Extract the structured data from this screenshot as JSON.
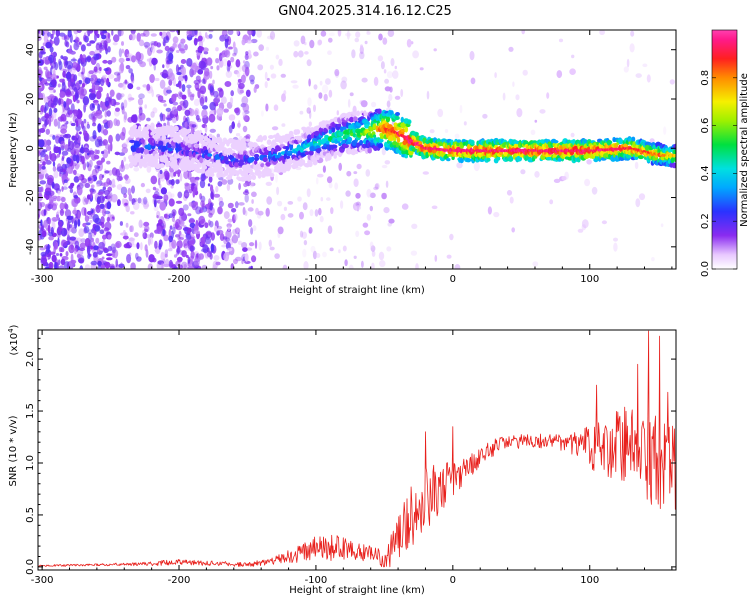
{
  "figure_title": "GN04.2025.314.16.12.C25",
  "chart_data": [
    {
      "type": "heatmap",
      "name": "spectrogram",
      "xlabel": "Height of straight line (km)",
      "ylabel": "Frequency (Hz)",
      "xlim": [
        -303,
        163
      ],
      "ylim": [
        -49,
        48
      ],
      "xticks": [
        -300,
        -200,
        -100,
        0,
        100
      ],
      "yticks": [
        -40,
        -20,
        0,
        20,
        40
      ],
      "colorbar": {
        "label": "Normalized spectral amplitude",
        "range": [
          0.0,
          1.0
        ],
        "ticks": [
          0.0,
          0.2,
          0.4,
          0.6,
          0.8
        ],
        "tick_labels": [
          "0.0",
          "0.2",
          "0.4",
          "0.6",
          "0.8"
        ]
      },
      "ridge": {
        "description": "dominant frequency track (Hz) vs height (km)",
        "x": [
          -235,
          -200,
          -160,
          -130,
          -110,
          -90,
          -75,
          -60,
          -50,
          -40,
          -30,
          -20,
          0,
          50,
          100,
          130,
          145,
          155,
          160
        ],
        "freq": [
          1,
          0,
          -5,
          -3,
          0,
          4,
          6,
          7,
          8,
          6,
          3,
          0,
          -1,
          -1,
          -1,
          0,
          -2,
          -3,
          -3
        ],
        "amplitude": [
          0.3,
          0.28,
          0.25,
          0.32,
          0.4,
          0.5,
          0.55,
          0.65,
          0.85,
          0.9,
          0.95,
          0.95,
          0.95,
          0.95,
          0.95,
          0.9,
          0.85,
          0.8,
          0.75
        ]
      }
    },
    {
      "type": "line",
      "name": "snr",
      "xlabel": "Height of straight line (km)",
      "ylabel": "SNR (10 * v/v)",
      "scale_label": "(x10",
      "scale_exponent": "4",
      "xlim": [
        -303,
        163
      ],
      "ylim": [
        -0.03,
        2.28
      ],
      "xticks": [
        -300,
        -200,
        -100,
        0,
        100
      ],
      "yticks": [
        0.0,
        0.5,
        1.0,
        1.5,
        2.0
      ],
      "ytick_labels": [
        "0.0",
        "0.5",
        "1.0",
        "1.5",
        "2.0"
      ],
      "color": "#e8201c",
      "envelope": {
        "x": [
          -303,
          -260,
          -220,
          -200,
          -150,
          -130,
          -115,
          -100,
          -90,
          -80,
          -70,
          -60,
          -50,
          -40,
          -30,
          -20,
          -10,
          0,
          10,
          20,
          30,
          40,
          60,
          80,
          90,
          100,
          110,
          120,
          130,
          140,
          150,
          163
        ],
        "mean": [
          0.01,
          0.02,
          0.03,
          0.05,
          0.02,
          0.06,
          0.12,
          0.18,
          0.2,
          0.18,
          0.15,
          0.12,
          0.08,
          0.25,
          0.5,
          0.65,
          0.75,
          0.85,
          0.95,
          1.05,
          1.15,
          1.2,
          1.22,
          1.2,
          1.18,
          1.15,
          1.15,
          1.18,
          1.1,
          1.05,
          1.0,
          0.95
        ],
        "noise": [
          0.01,
          0.01,
          0.02,
          0.03,
          0.02,
          0.04,
          0.08,
          0.12,
          0.14,
          0.12,
          0.1,
          0.08,
          0.1,
          0.25,
          0.3,
          0.3,
          0.25,
          0.18,
          0.12,
          0.1,
          0.08,
          0.07,
          0.07,
          0.08,
          0.12,
          0.22,
          0.3,
          0.35,
          0.45,
          0.45,
          0.45,
          0.4
        ]
      },
      "peaks": [
        {
          "x": -20,
          "y": 1.3
        },
        {
          "x": 0,
          "y": 1.35
        },
        {
          "x": 105,
          "y": 1.75
        },
        {
          "x": 135,
          "y": 1.95
        },
        {
          "x": 143,
          "y": 2.27
        },
        {
          "x": 151,
          "y": 2.22
        },
        {
          "x": 157,
          "y": 1.68
        }
      ]
    }
  ]
}
